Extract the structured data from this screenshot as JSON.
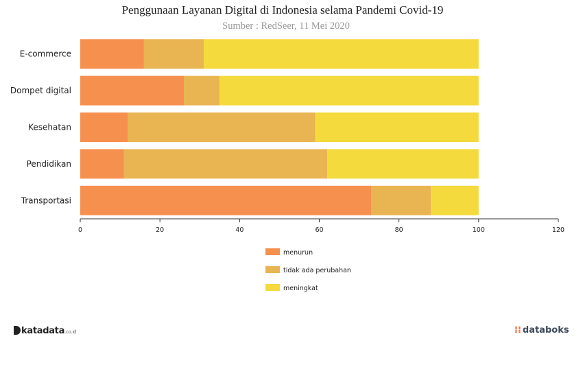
{
  "chart_data": {
    "type": "bar",
    "orientation": "horizontal",
    "stacked": true,
    "title": "Penggunaan Layanan Digital di Indonesia selama Pandemi Covid-19",
    "subtitle": "Sumber : RedSeer, 11 Mei 2020",
    "categories": [
      "E-commerce",
      "Dompet digital",
      "Kesehatan",
      "Pendidikan",
      "Transportasi"
    ],
    "series": [
      {
        "name": "menurun",
        "color": "#f6904f",
        "values": [
          16,
          26,
          12,
          11,
          73
        ]
      },
      {
        "name": "tidak ada perubahan",
        "color": "#e9b553",
        "values": [
          15,
          9,
          47,
          51,
          15
        ]
      },
      {
        "name": "meningkat",
        "color": "#f4da3d",
        "values": [
          69,
          65,
          41,
          38,
          12
        ]
      }
    ],
    "xlim": [
      0,
      120
    ],
    "xticks": [
      "0",
      "20",
      "40",
      "60",
      "80",
      "100",
      "120"
    ],
    "legend_position": "bottom",
    "grid": false
  },
  "logos": {
    "left": {
      "name": "katadata",
      "text": "katadata",
      "suffix": ".co.id"
    },
    "right": {
      "name": "databoks",
      "text": "databoks"
    }
  }
}
